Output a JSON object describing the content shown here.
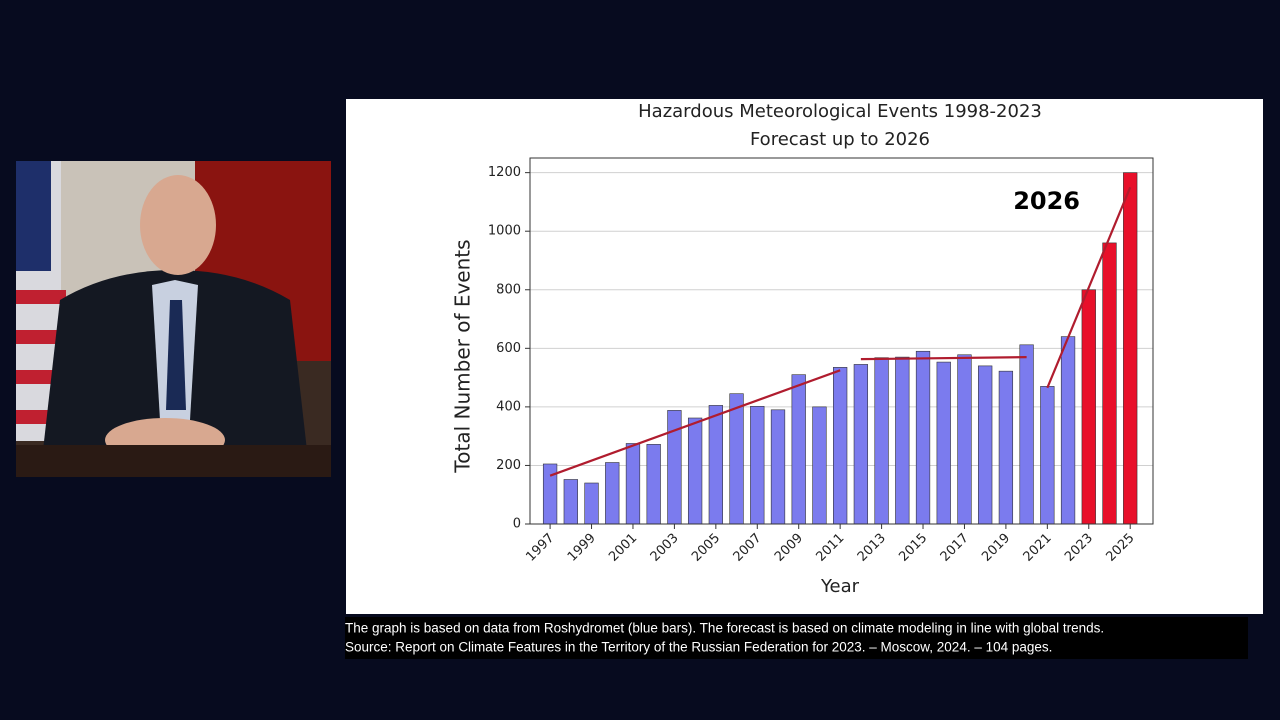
{
  "chart_data": {
    "type": "bar",
    "title": "Hazardous Meteorological Events 1998-2023",
    "subtitle": "Forecast up to 2026",
    "x_label": "Year",
    "y_label": "Total Number of Events",
    "categories": [
      "1997",
      null,
      "1999",
      null,
      "2001",
      null,
      "2003",
      null,
      "2005",
      null,
      "2007",
      null,
      "2009",
      null,
      "2011",
      null,
      "2013",
      null,
      "2015",
      null,
      "2017",
      null,
      "2019",
      null,
      "2021",
      null,
      "2023",
      null,
      "2025"
    ],
    "values": [
      205,
      152,
      140,
      210,
      275,
      272,
      388,
      362,
      405,
      445,
      402,
      390,
      510,
      400,
      535,
      545,
      568,
      570,
      590,
      553,
      578,
      540,
      522,
      612,
      470,
      640,
      800,
      960,
      1200
    ],
    "colors": [
      "#7b7bee",
      "#7b7bee",
      "#7b7bee",
      "#7b7bee",
      "#7b7bee",
      "#7b7bee",
      "#7b7bee",
      "#7b7bee",
      "#7b7bee",
      "#7b7bee",
      "#7b7bee",
      "#7b7bee",
      "#7b7bee",
      "#7b7bee",
      "#7b7bee",
      "#7b7bee",
      "#7b7bee",
      "#7b7bee",
      "#7b7bee",
      "#7b7bee",
      "#7b7bee",
      "#7b7bee",
      "#7b7bee",
      "#7b7bee",
      "#7b7bee",
      "#7b7bee",
      "#e8102a",
      "#e8102a",
      "#e8102a"
    ],
    "ylim": [
      0,
      1250
    ],
    "yticks": [
      0,
      200,
      400,
      600,
      800,
      1000,
      1200
    ],
    "grid": true,
    "trend_lines": [
      {
        "color": "#b01c2e",
        "x": [
          0,
          14
        ],
        "values": [
          165,
          525
        ]
      },
      {
        "color": "#b01c2e",
        "x": [
          15,
          23
        ],
        "values": [
          563,
          570
        ]
      },
      {
        "color": "#b01c2e",
        "x": [
          24,
          28
        ],
        "values": [
          465,
          1150
        ]
      }
    ],
    "annotation": "2026"
  },
  "caption": {
    "line1": "The graph is based on data from  Roshydromet (blue bars). The forecast is based on climate modeling in line with global trends.",
    "line2": "Source: Report on Climate Features in the Territory of the Russian Federation for 2023. – Moscow, 2024. – 104 pages."
  }
}
